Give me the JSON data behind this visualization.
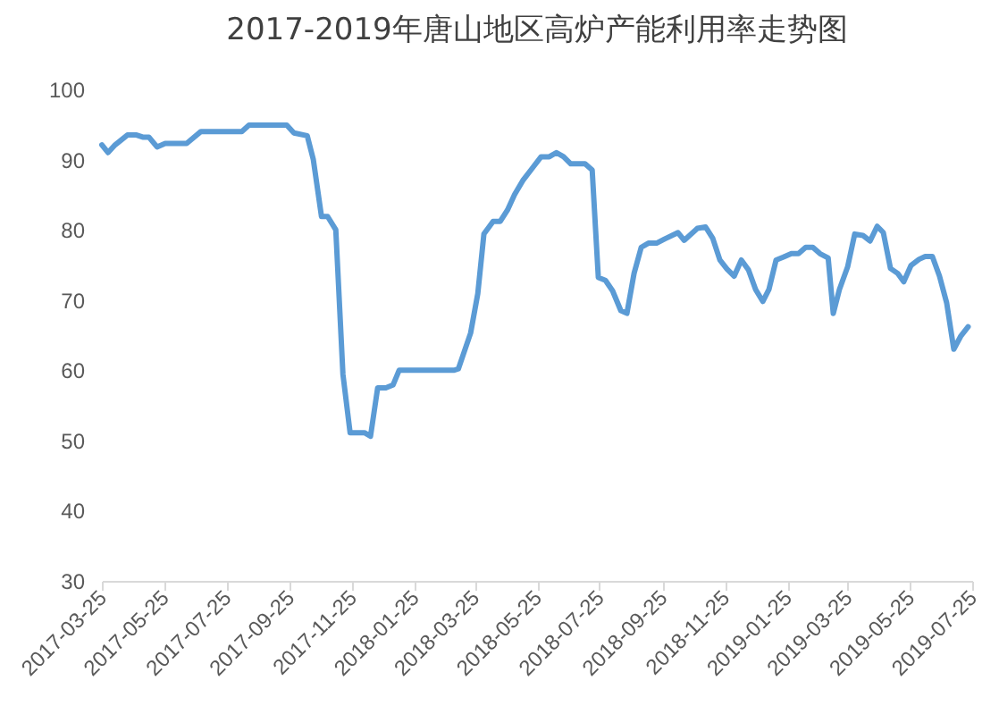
{
  "chart_data": {
    "type": "line",
    "title": "2017-2019年唐山地区高炉产能利用率走势图",
    "x": [
      "2017-03-25",
      "2017-03-31",
      "2017-04-07",
      "2017-04-19",
      "2017-04-28",
      "2017-05-04",
      "2017-05-10",
      "2017-05-18",
      "2017-05-26",
      "2017-06-16",
      "2017-06-30",
      "2017-08-09",
      "2017-08-16",
      "2017-09-22",
      "2017-09-29",
      "2017-10-12",
      "2017-10-18",
      "2017-10-26",
      "2017-11-01",
      "2017-11-09",
      "2017-11-16",
      "2017-11-23",
      "2017-12-07",
      "2017-12-13",
      "2017-12-20",
      "2017-12-28",
      "2018-01-04",
      "2018-01-10",
      "2018-03-05",
      "2018-03-09",
      "2018-03-21",
      "2018-03-28",
      "2018-04-03",
      "2018-04-12",
      "2018-04-19",
      "2018-04-26",
      "2018-05-03",
      "2018-05-11",
      "2018-05-20",
      "2018-05-29",
      "2018-06-06",
      "2018-06-13",
      "2018-06-20",
      "2018-06-27",
      "2018-07-11",
      "2018-07-18",
      "2018-07-24",
      "2018-07-31",
      "2018-08-07",
      "2018-08-15",
      "2018-08-21",
      "2018-08-28",
      "2018-09-04",
      "2018-09-11",
      "2018-09-19",
      "2018-09-27",
      "2018-10-10",
      "2018-10-16",
      "2018-10-29",
      "2018-11-06",
      "2018-11-13",
      "2018-11-20",
      "2018-11-27",
      "2018-12-04",
      "2018-12-11",
      "2018-12-18",
      "2018-12-25",
      "2019-01-01",
      "2019-01-07",
      "2019-01-14",
      "2019-01-21",
      "2019-01-29",
      "2019-02-05",
      "2019-02-12",
      "2019-02-19",
      "2019-02-26",
      "2019-03-06",
      "2019-03-11",
      "2019-03-17",
      "2019-03-25",
      "2019-04-01",
      "2019-04-09",
      "2019-04-16",
      "2019-04-23",
      "2019-04-29",
      "2019-05-06",
      "2019-05-13",
      "2019-05-19",
      "2019-05-26",
      "2019-06-03",
      "2019-06-09",
      "2019-06-16",
      "2019-06-23",
      "2019-06-30",
      "2019-07-07",
      "2019-07-14",
      "2019-07-21"
    ],
    "series": [
      {
        "color": "#5b9bd5",
        "values": [
          92.1,
          91.0,
          92.1,
          93.5,
          93.5,
          93.2,
          93.2,
          91.8,
          92.3,
          92.3,
          94.0,
          94.0,
          94.9,
          94.9,
          93.8,
          93.4,
          90.0,
          81.9,
          81.9,
          80.0,
          59.4,
          51.1,
          51.1,
          50.6,
          57.5,
          57.5,
          57.9,
          60.0,
          60.0,
          60.2,
          65.3,
          70.9,
          79.4,
          81.2,
          81.2,
          82.8,
          85.0,
          87.0,
          88.7,
          90.4,
          90.4,
          91.0,
          90.4,
          89.4,
          89.4,
          88.5,
          73.2,
          72.8,
          71.3,
          68.5,
          68.1,
          73.8,
          77.5,
          78.1,
          78.1,
          78.7,
          79.6,
          78.5,
          80.2,
          80.4,
          78.8,
          75.7,
          74.4,
          73.4,
          75.7,
          74.3,
          71.5,
          69.8,
          71.5,
          75.7,
          76.1,
          76.6,
          76.6,
          77.5,
          77.5,
          76.6,
          76.0,
          68.1,
          71.5,
          74.7,
          79.4,
          79.2,
          78.4,
          80.5,
          79.6,
          74.5,
          73.8,
          72.6,
          74.9,
          75.8,
          76.2,
          76.2,
          73.4,
          69.6,
          63.0,
          64.9,
          66.2
        ]
      }
    ],
    "xlim": [
      "2017-03-25",
      "2019-07-25"
    ],
    "xticks": [
      "2017-03-25",
      "2017-05-25",
      "2017-07-25",
      "2017-09-25",
      "2017-11-25",
      "2018-01-25",
      "2018-03-25",
      "2018-05-25",
      "2018-07-25",
      "2018-09-25",
      "2018-11-25",
      "2019-01-25",
      "2019-03-25",
      "2019-05-25",
      "2019-07-25"
    ],
    "ylim": [
      30,
      100
    ],
    "yticks": [
      30,
      40,
      50,
      60,
      70,
      80,
      90,
      100
    ],
    "line_style": "solid"
  }
}
